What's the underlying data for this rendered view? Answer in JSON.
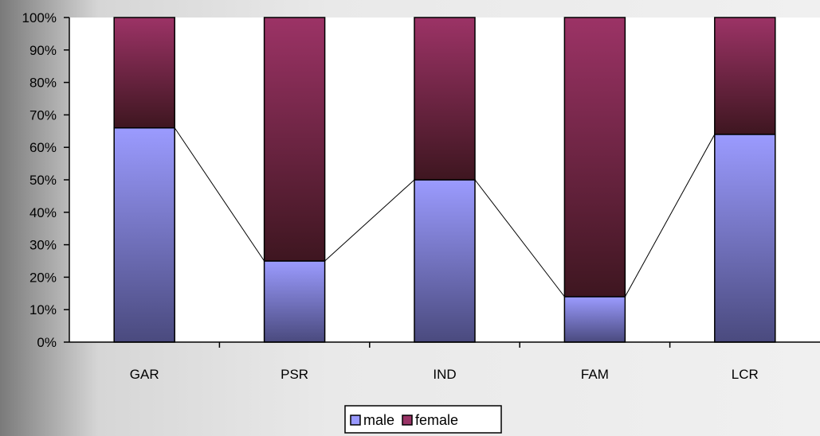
{
  "chart_data": {
    "type": "bar",
    "stacked": true,
    "categories": [
      "GAR",
      "PSR",
      "IND",
      "FAM",
      "LCR"
    ],
    "series": [
      {
        "name": "male",
        "values": [
          66,
          25,
          50,
          14,
          64
        ],
        "color": "#9999ff"
      },
      {
        "name": "female",
        "values": [
          34,
          75,
          50,
          86,
          36
        ],
        "color": "#993366"
      }
    ],
    "ylim": [
      0,
      100
    ],
    "yticks": [
      "0%",
      "10%",
      "20%",
      "30%",
      "40%",
      "50%",
      "60%",
      "70%",
      "80%",
      "90%",
      "100%"
    ],
    "connector_lines": true,
    "grid": false,
    "legend_position": "bottom"
  }
}
